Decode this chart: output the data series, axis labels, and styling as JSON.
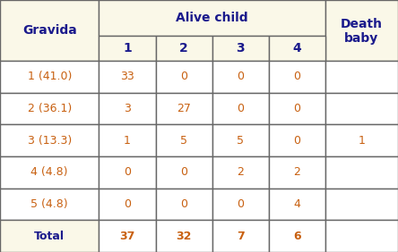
{
  "header_bg": "#faf8e8",
  "header_text_color": "#1a1a8c",
  "cell_bg": "#ffffff",
  "cell_text_color": "#c86010",
  "border_color": "#666666",
  "col1_header": "Gravida",
  "group_header": "Alive child",
  "last_header_line1": "Death",
  "last_header_line2": "baby",
  "sub_headers": [
    "1",
    "2",
    "3",
    "4"
  ],
  "rows": [
    [
      "1 (41.0)",
      "33",
      "0",
      "0",
      "0",
      ""
    ],
    [
      "2 (36.1)",
      "3",
      "27",
      "0",
      "0",
      ""
    ],
    [
      "3 (13.3)",
      "1",
      "5",
      "5",
      "0",
      "1"
    ],
    [
      "4 (4.8)",
      "0",
      "0",
      "2",
      "2",
      ""
    ],
    [
      "5 (4.8)",
      "0",
      "0",
      "0",
      "4",
      ""
    ],
    [
      "Total",
      "37",
      "32",
      "7",
      "6",
      ""
    ]
  ],
  "figwidth": 4.44,
  "figheight": 2.82,
  "dpi": 100
}
